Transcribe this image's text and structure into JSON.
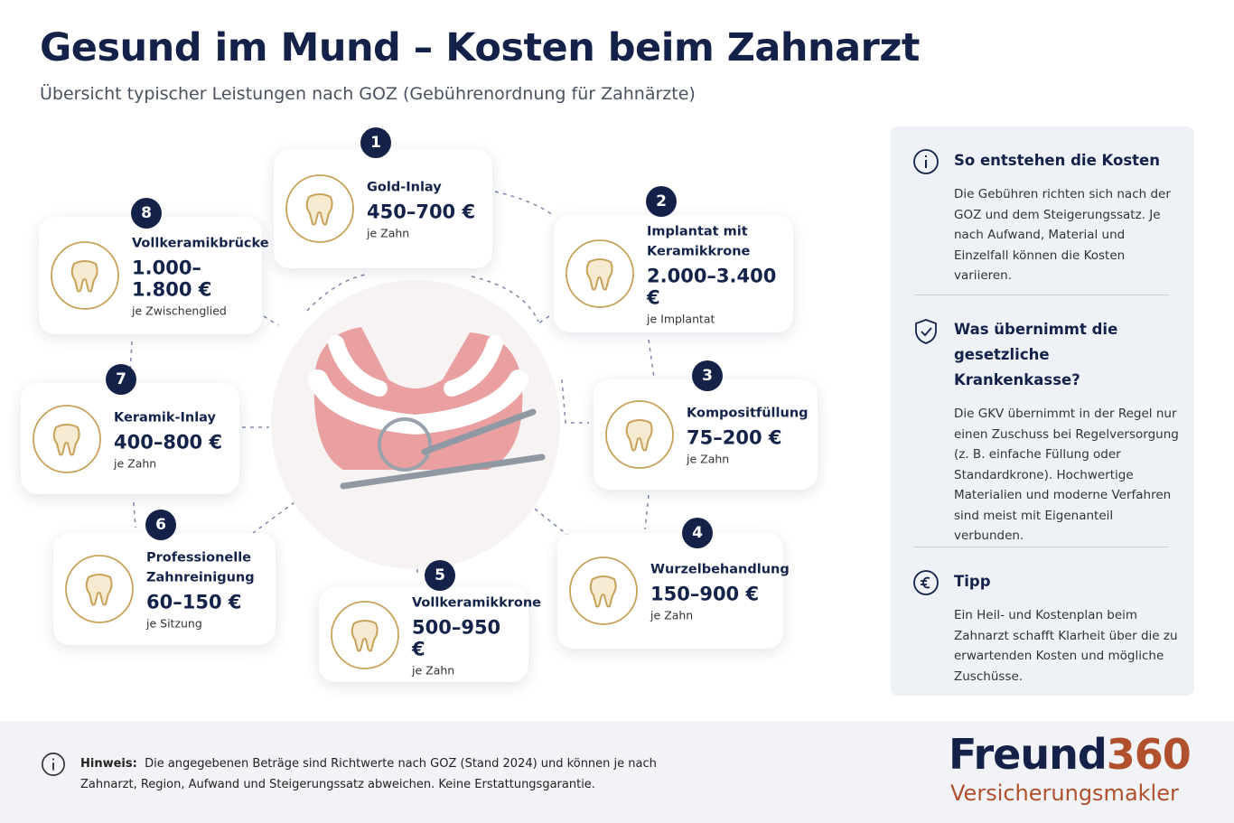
{
  "header": {
    "title": "Gesund im Mund – Kosten beim Zahnarzt",
    "subtitle": "Übersicht typischer Leistungen nach GOZ (Gebührenordnung für Zahnärzte)"
  },
  "services": [
    {
      "number": 1,
      "name": "Gold-Inlay",
      "price": "450–700 €",
      "unit": "je Zahn"
    },
    {
      "number": 2,
      "name": "Implantat mit Keramikkrone",
      "price": "2.000–3.400 €",
      "unit": "je Implantat"
    },
    {
      "number": 3,
      "name": "Kompositfüllung",
      "price": "75–200 €",
      "unit": "je Zahn"
    },
    {
      "number": 4,
      "name": "Wurzelbehandlung",
      "price": "150–900 €",
      "unit": "je Zahn"
    },
    {
      "number": 5,
      "name": "Vollkeramikkrone",
      "price": "500–950 €",
      "unit": "je Zahn"
    },
    {
      "number": 6,
      "name": "Professionelle Zahnreinigung",
      "price": "60–150 €",
      "unit": "je Sitzung"
    },
    {
      "number": 7,
      "name": "Keramik-Inlay",
      "price": "400–800 €",
      "unit": "je Zahn"
    },
    {
      "number": 8,
      "name": "Vollkeramikbrücke",
      "price": "1.000–1.800 €",
      "unit": "je Zwischenglied"
    }
  ],
  "sidebar": [
    {
      "heading": "So entstehen die Kosten",
      "text": "Die Gebühren richten sich nach der GOZ und dem Steigerungssatz. Je nach Aufwand, Material und Einzelfall können die Kosten variieren."
    },
    {
      "heading": "Was übernimmt die gesetzliche Krankenkasse?",
      "text": "Die GKV übernimmt in der Regel nur einen Zuschuss bei Regelversorgung (z. B. einfache Füllung oder Standardkrone). Hochwertige Materialien und moderne Verfahren sind meist mit Eigenanteil verbunden."
    },
    {
      "heading": "Tipp",
      "text": "Ein Heil- und Kostenplan beim Zahnarzt schafft Klarheit über die zu erwartenden Kosten und mögliche Zuschüsse."
    }
  ],
  "footer": {
    "label": "Hinweis:",
    "text": "Die angegebenen Beträge sind Richtwerte nach GOZ (Stand 2024) und können je nach Zahnarzt, Region, Aufwand und Steigerungssatz abweichen. Keine Erstattungsgarantie."
  },
  "logo": {
    "brand": "Freund",
    "number": "360",
    "tagline": "Versicherungsmakler"
  }
}
